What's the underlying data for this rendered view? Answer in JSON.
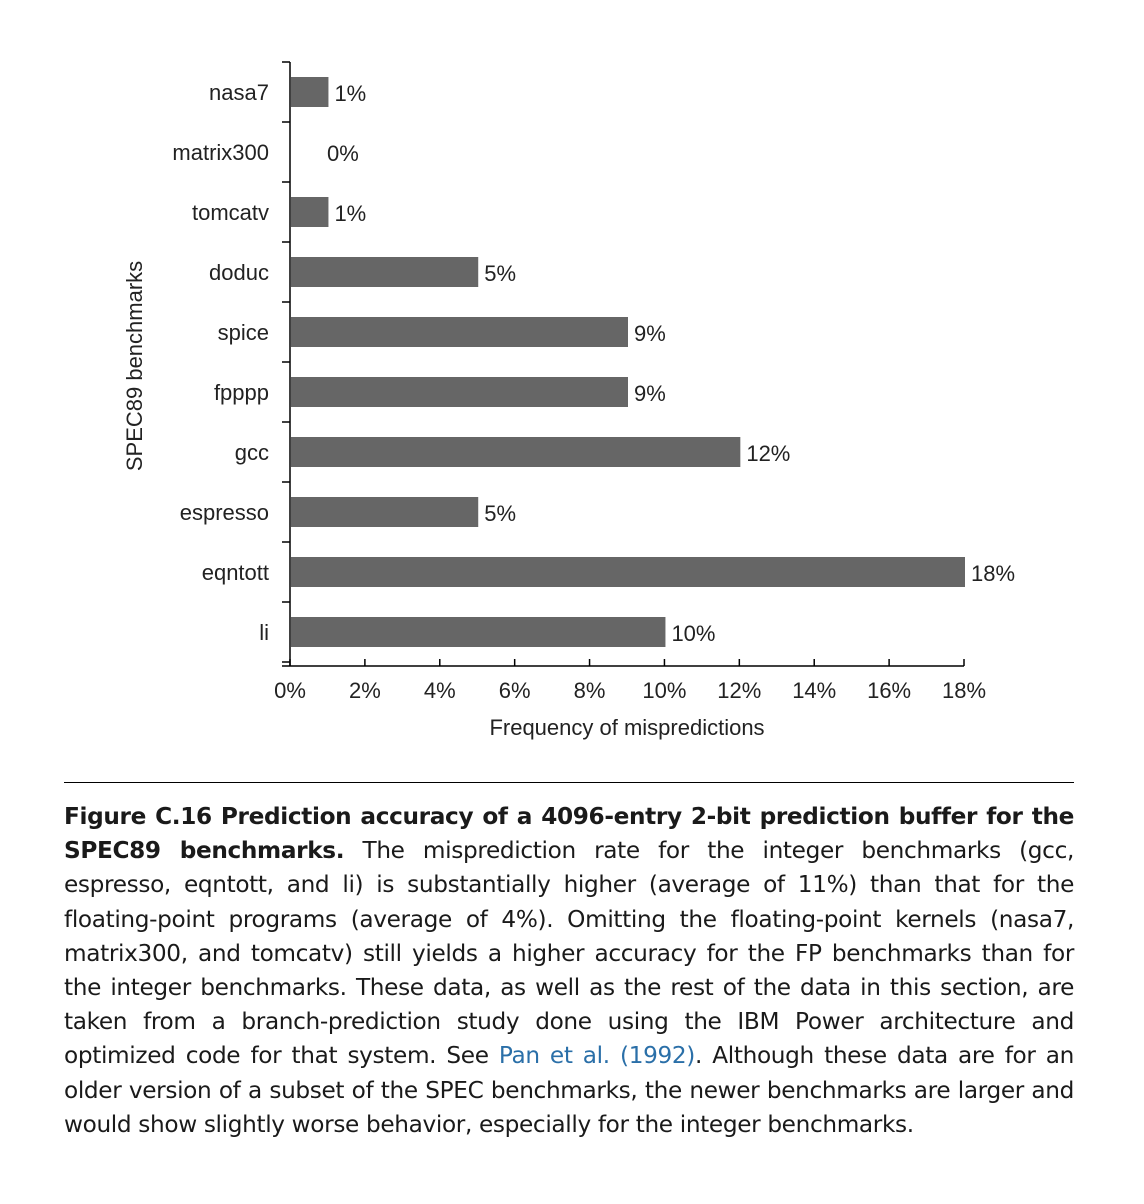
{
  "chart_data": {
    "type": "bar",
    "orientation": "horizontal",
    "categories": [
      "nasa7",
      "matrix300",
      "tomcatv",
      "doduc",
      "spice",
      "fpppp",
      "gcc",
      "espresso",
      "eqntott",
      "li"
    ],
    "values": [
      1,
      0,
      1,
      5,
      9,
      9,
      12,
      5,
      18,
      10
    ],
    "value_labels": [
      "1%",
      "0%",
      "1%",
      "5%",
      "9%",
      "9%",
      "12%",
      "5%",
      "18%",
      "10%"
    ],
    "xlabel": "Frequency of mispredictions",
    "ylabel": "SPEC89 benchmarks",
    "xlim": [
      0,
      18
    ],
    "xticks": [
      0,
      2,
      4,
      6,
      8,
      10,
      12,
      14,
      16,
      18
    ],
    "xtick_labels": [
      "0%",
      "2%",
      "4%",
      "6%",
      "8%",
      "10%",
      "12%",
      "14%",
      "16%",
      "18%"
    ],
    "grid": false,
    "bar_color": "#666666"
  },
  "caption": {
    "label": "Figure C.16 Prediction accuracy of a 4096-entry 2-bit prediction buffer for the SPEC89 benchmarks.",
    "text_1": " The misprediction rate for the integer benchmarks (gcc, espresso, eqntott, and li) is substantially higher (average of 11%) than that for the floating-point programs (average of 4%). Omitting the floating-point kernels (nasa7, matrix300, and tomcatv) still yields a higher accuracy for the FP benchmarks than for the integer benchmarks. These data, as well as the rest of the data in this section, are taken from a branch-prediction study done using the IBM Power architecture and optimized code for that system. See ",
    "link": "Pan et al. (1992)",
    "text_2": ". Although these data are for an older version of a subset of the SPEC benchmarks, the newer benchmarks are larger and would show slightly worse behavior, especially for the integer benchmarks.",
    "link_color": "#2a6fa8"
  }
}
